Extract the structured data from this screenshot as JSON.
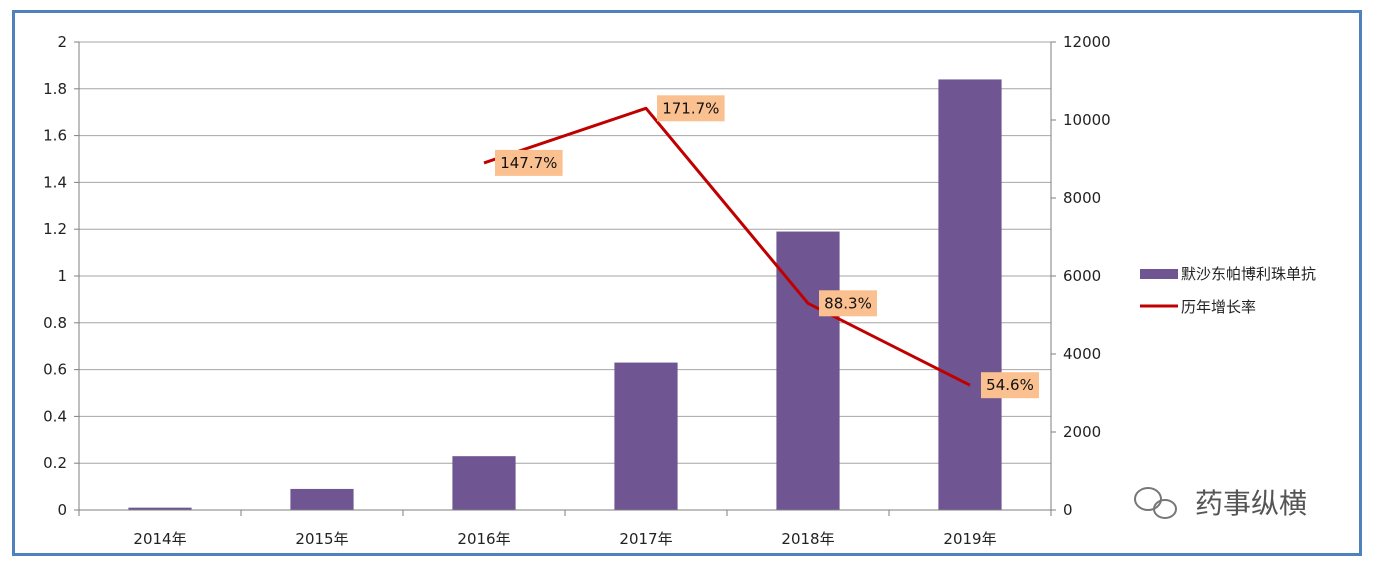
{
  "chart_data": {
    "type": "bar",
    "categories": [
      "2014年",
      "2015年",
      "2016年",
      "2017年",
      "2018年",
      "2019年"
    ],
    "series": [
      {
        "name": "默沙东帕博利珠单抗",
        "type": "bar",
        "axis": "left",
        "color": "#6f5591",
        "values": [
          0.01,
          0.09,
          0.23,
          0.63,
          1.19,
          1.84
        ]
      },
      {
        "name": "历年增长率",
        "type": "line",
        "axis": "right",
        "color": "#c00000",
        "values": [
          null,
          null,
          8900,
          10300,
          5300,
          3200
        ],
        "labels": [
          null,
          null,
          "147.7%",
          "171.7%",
          "88.3%",
          "54.6%"
        ]
      }
    ],
    "y_left": {
      "ticks": [
        "0",
        "0.2",
        "0.4",
        "0.6",
        "0.8",
        "1",
        "1.2",
        "1.4",
        "1.6",
        "1.8",
        "2"
      ],
      "ylim": [
        0,
        2
      ]
    },
    "y_right": {
      "ticks": [
        "0",
        "2000",
        "4000",
        "6000",
        "8000",
        "10000",
        "12000"
      ],
      "ylim": [
        0,
        12000
      ]
    },
    "grid": true,
    "legend_position": "right",
    "label_bg_color": "#fac090"
  },
  "watermark": {
    "text": "药事纵横",
    "icon": "wechat-icon"
  }
}
